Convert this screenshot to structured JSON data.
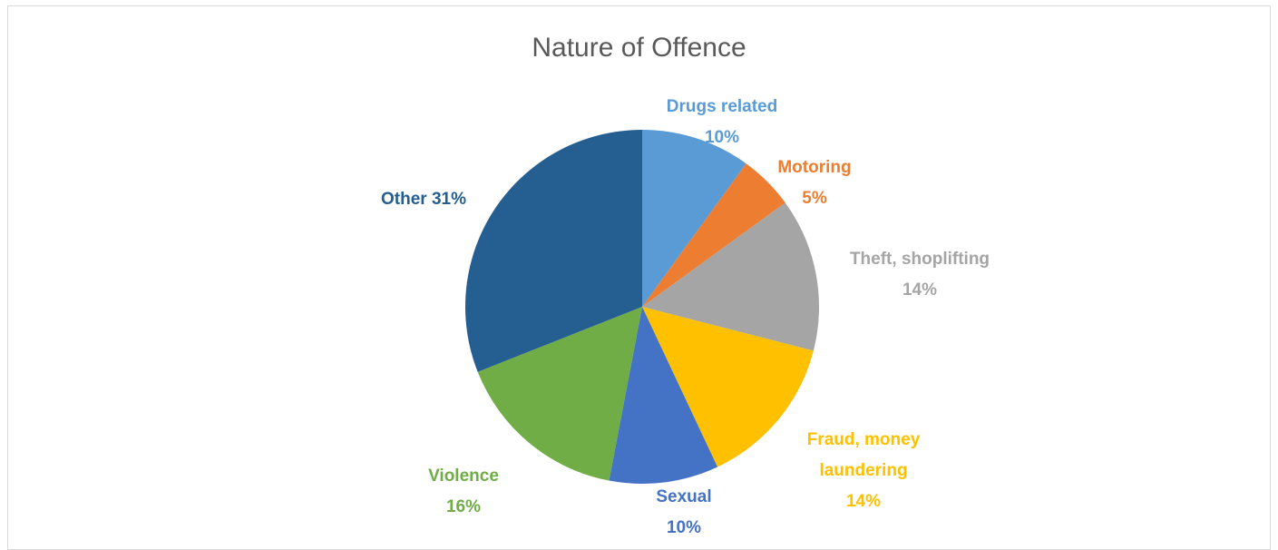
{
  "chart_data": {
    "type": "pie",
    "title": "Nature of Offence",
    "slices": [
      {
        "label": "Drugs related",
        "value": 10,
        "label_lines": [
          "Drugs related",
          "10%"
        ],
        "color": "#5b9bd5"
      },
      {
        "label": "Motoring",
        "value": 5,
        "label_lines": [
          "Motoring",
          "5%"
        ],
        "color": "#ed7d31"
      },
      {
        "label": "Theft, shoplifting",
        "value": 14,
        "label_lines": [
          "Theft, shoplifting",
          "14%"
        ],
        "color": "#a5a5a5"
      },
      {
        "label": "Fraud, money laundering",
        "value": 14,
        "label_lines": [
          "Fraud, money",
          "laundering",
          "14%"
        ],
        "color": "#ffc000"
      },
      {
        "label": "Sexual",
        "value": 10,
        "label_lines": [
          "Sexual",
          "10%"
        ],
        "color": "#4472c4"
      },
      {
        "label": "Violence",
        "value": 16,
        "label_lines": [
          "Violence",
          "16%"
        ],
        "color": "#70ad47"
      },
      {
        "label": "Other",
        "value": 31,
        "label_lines": [
          "Other 31%"
        ],
        "color": "#255e91"
      }
    ],
    "start_angle_deg": 0,
    "direction": "clockwise",
    "data_labels": "outside",
    "legend": "none"
  }
}
